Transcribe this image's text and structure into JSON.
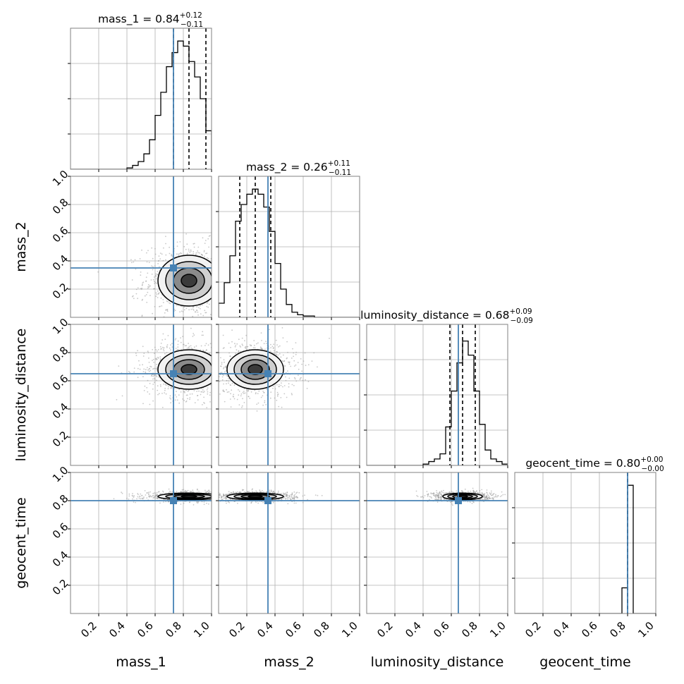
{
  "chart_data": {
    "type": "corner",
    "parameters": [
      "mass_1",
      "mass_2",
      "luminosity_distance",
      "geocent_time"
    ],
    "axis_labels": {
      "x": [
        "mass_1",
        "mass_2",
        "luminosity_distance",
        "geocent_time"
      ],
      "y": [
        "",
        "mass_2",
        "luminosity_distance",
        "geocent_time"
      ]
    },
    "ranges": [
      [
        0,
        1
      ],
      [
        0,
        1
      ],
      [
        0,
        1
      ],
      [
        0,
        1
      ]
    ],
    "ticks": [
      0.2,
      0.4,
      0.6,
      0.8,
      1.0
    ],
    "tick_labels": [
      "0.2",
      "0.4",
      "0.6",
      "0.8",
      "1.0"
    ],
    "grid": true,
    "injection_color": "#4682b4",
    "truths": [
      0.73,
      0.35,
      0.65,
      0.8
    ],
    "titles": [
      {
        "label": "mass_1 = 0.84",
        "plus": "+0.12",
        "minus": "−0.11"
      },
      {
        "label": "mass_2 = 0.26",
        "plus": "+0.11",
        "minus": "−0.11"
      },
      {
        "label": "luminosity_distance = 0.68",
        "plus": "+0.09",
        "minus": "−0.09"
      },
      {
        "label": "geocent_time = 0.80",
        "plus": "+0.00",
        "minus": "−0.00"
      }
    ],
    "quantiles": [
      [
        0.73,
        0.84,
        0.96
      ],
      [
        0.15,
        0.26,
        0.37
      ],
      [
        0.59,
        0.68,
        0.77
      ],
      [
        0.8,
        0.8,
        0.8
      ]
    ],
    "histograms": [
      {
        "bin_edges_start": 0.0,
        "bin_width": 0.04,
        "relative_counts": [
          0,
          0,
          0,
          0,
          0,
          0,
          0,
          0,
          0,
          0,
          0.01,
          0.03,
          0.06,
          0.12,
          0.23,
          0.42,
          0.6,
          0.8,
          0.91,
          1.0,
          0.96,
          0.84,
          0.72,
          0.55,
          0.3
        ]
      },
      {
        "bin_edges_start": 0.0,
        "bin_width": 0.04,
        "relative_counts": [
          0.11,
          0.27,
          0.48,
          0.75,
          0.88,
          0.96,
          1.0,
          0.96,
          0.86,
          0.67,
          0.42,
          0.22,
          0.1,
          0.04,
          0.02,
          0.01,
          0.01,
          0,
          0,
          0,
          0,
          0,
          0,
          0,
          0
        ]
      },
      {
        "bin_edges_start": 0.0,
        "bin_width": 0.04,
        "relative_counts": [
          0,
          0,
          0,
          0,
          0,
          0,
          0,
          0,
          0,
          0,
          0.01,
          0.03,
          0.05,
          0.09,
          0.3,
          0.58,
          0.8,
          0.97,
          0.86,
          0.58,
          0.32,
          0.12,
          0.05,
          0.03,
          0.01
        ]
      },
      {
        "bin_edges_start": 0.0,
        "bin_width": 0.04,
        "relative_counts": [
          0,
          0,
          0,
          0,
          0,
          0,
          0,
          0,
          0,
          0,
          0,
          0,
          0,
          0,
          0,
          0,
          0,
          0,
          0,
          0.2,
          1.0,
          0,
          0,
          0,
          0
        ]
      }
    ],
    "hist_ymax": [
      1.1,
      1.1,
      1.1,
      1.1
    ],
    "posterior_2d": [
      {
        "x": 0,
        "y": 1,
        "mean": [
          0.84,
          0.26
        ],
        "sd": [
          0.11,
          0.09
        ]
      },
      {
        "x": 0,
        "y": 2,
        "mean": [
          0.84,
          0.68
        ],
        "sd": [
          0.11,
          0.07
        ]
      },
      {
        "x": 1,
        "y": 2,
        "mean": [
          0.26,
          0.68
        ],
        "sd": [
          0.1,
          0.07
        ]
      },
      {
        "x": 0,
        "y": 3,
        "mean": [
          0.84,
          0.83
        ],
        "sd": [
          0.11,
          0.012
        ]
      },
      {
        "x": 1,
        "y": 3,
        "mean": [
          0.26,
          0.83
        ],
        "sd": [
          0.1,
          0.012
        ]
      },
      {
        "x": 2,
        "y": 3,
        "mean": [
          0.68,
          0.83
        ],
        "sd": [
          0.07,
          0.012
        ]
      }
    ],
    "contour_levels_sigma": [
      0.5,
      1.0,
      1.5,
      2.0
    ]
  }
}
